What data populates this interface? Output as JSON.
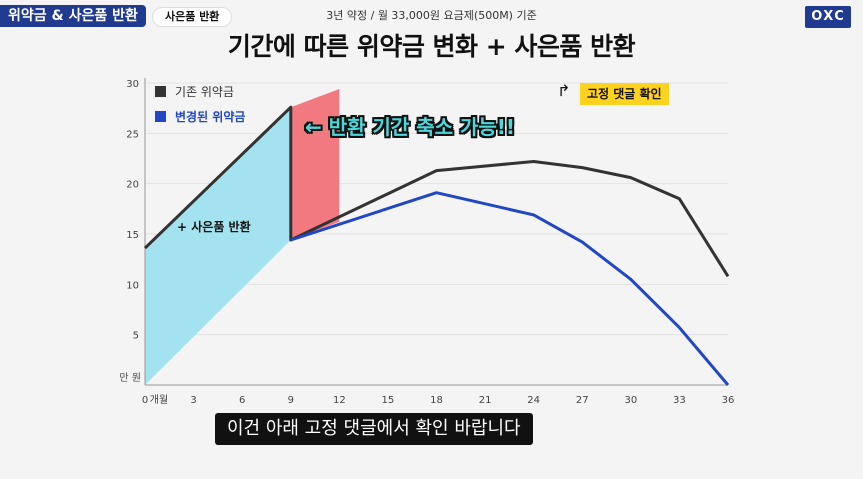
{
  "header": {
    "badge_main": "위약금 & 사은품 반환",
    "badge_sub": "사은품 반환",
    "subtitle": "3년 약정 / 월 33,000원 요금제(500M) 기준",
    "title": "기간에 따른 위약금 변화 + 사은품 반환",
    "logo": "ОХС"
  },
  "annotations": {
    "arrow_text": "← 반환 기간 축소 가능!!",
    "gift_return": "+ 사은품 반환",
    "pinned": "고정 댓글 확인",
    "pinned_arrow": "↱"
  },
  "caption": "이건 아래 고정 댓글에서 확인 바랍니다",
  "colors": {
    "old": "#333333",
    "new": "#2147c4",
    "gift_area": "#a3e3ef",
    "highlight": "#f26b73"
  },
  "chart_data": {
    "type": "line",
    "x": [
      0,
      3,
      6,
      9,
      12,
      15,
      18,
      21,
      24,
      27,
      30,
      33,
      36
    ],
    "x_tick_labels": [
      "0",
      "3",
      "6",
      "9",
      "12",
      "15",
      "18",
      "21",
      "24",
      "27",
      "30",
      "33",
      "36"
    ],
    "x_unit": "개월",
    "y_unit": "만 원",
    "y_ticks": [
      5,
      10,
      15,
      20,
      25,
      30
    ],
    "ylim": [
      0,
      30
    ],
    "xlim": [
      0,
      36
    ],
    "series": [
      {
        "name": "기존 위약금",
        "color": "#333333",
        "points": [
          [
            0,
            13.6
          ],
          [
            9,
            27.6
          ],
          [
            9,
            14.4
          ],
          [
            18,
            21.3
          ],
          [
            24,
            22.2
          ],
          [
            27,
            21.6
          ],
          [
            30,
            20.6
          ],
          [
            33,
            18.5
          ],
          [
            36,
            10.8
          ]
        ]
      },
      {
        "name": "변경된 위약금",
        "color": "#2147c4",
        "points": [
          [
            9,
            14.4
          ],
          [
            18,
            19.1
          ],
          [
            24,
            16.9
          ],
          [
            27,
            14.2
          ],
          [
            30,
            10.5
          ],
          [
            33,
            5.7
          ],
          [
            36,
            0
          ]
        ]
      }
    ],
    "gift_area": [
      [
        0,
        0
      ],
      [
        0,
        13.6
      ],
      [
        9,
        27.6
      ],
      [
        9,
        14.4
      ]
    ],
    "highlight_band": [
      [
        9,
        14.4
      ],
      [
        9,
        27.6
      ],
      [
        12,
        29.4
      ],
      [
        12,
        16.2
      ]
    ]
  }
}
